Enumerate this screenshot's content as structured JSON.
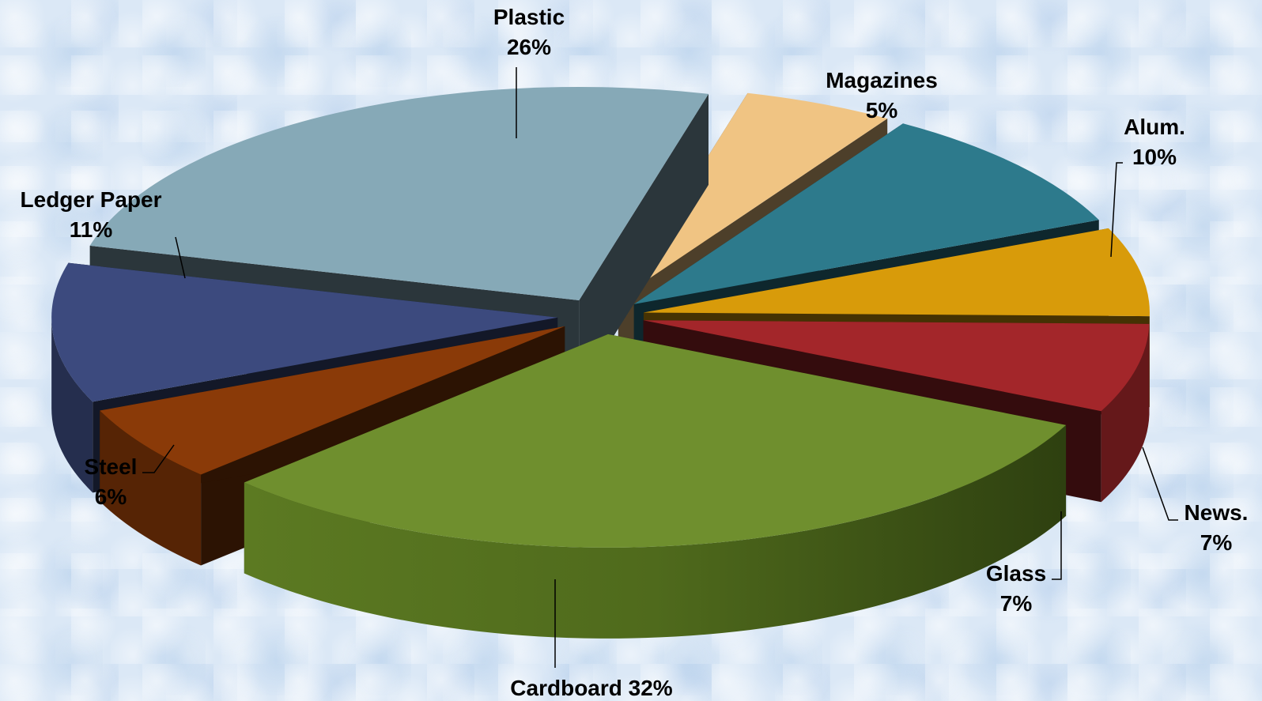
{
  "chart_data": {
    "type": "pie",
    "style": "3d-exploded",
    "slices": [
      {
        "name": "Cardboard",
        "value": 32,
        "label": "Cardboard 32%",
        "color": "#6f8f2e"
      },
      {
        "name": "Steel",
        "value": 6,
        "label_name": "Steel",
        "label_pct": "6%",
        "color": "#8a3a08"
      },
      {
        "name": "Ledger Paper",
        "value": 11,
        "label_name": "Ledger Paper",
        "label_pct": "11%",
        "color": "#3c4a7e"
      },
      {
        "name": "Plastic",
        "value": 26,
        "label_name": "Plastic",
        "label_pct": "26%",
        "color": "#86a9b7"
      },
      {
        "name": "Magazines",
        "value": 5,
        "label_name": "Magazines",
        "label_pct": "5%",
        "color": "#f0c483"
      },
      {
        "name": "Alum.",
        "value": 10,
        "label_name": "Alum.",
        "label_pct": "10%",
        "color": "#2d7a8c"
      },
      {
        "name": "News.",
        "value": 7,
        "label_name": "News.",
        "label_pct": "7%",
        "color": "#d89b0a"
      },
      {
        "name": "Glass",
        "value": 7,
        "label_name": "Glass",
        "label_pct": "7%",
        "color": "#a3262a"
      }
    ]
  }
}
